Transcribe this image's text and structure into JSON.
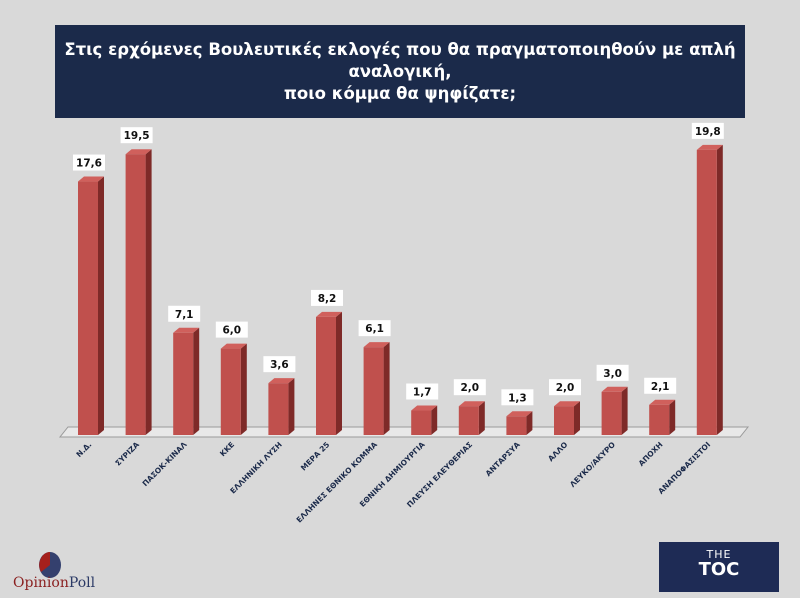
{
  "chart_data": {
    "type": "bar",
    "title": "Στις ερχόμενες Βουλευτικές εκλογές που θα πραγματοποιηθούν με απλή αναλογική, ποιο κόμμα θα ψηφίζατε;",
    "title_lines": [
      "Στις ερχόμενες Βουλευτικές εκλογές που θα πραγματοποιηθούν με απλή αναλογική,",
      "ποιο κόμμα θα ψηφίζατε;"
    ],
    "categories": [
      "Ν.Δ.",
      "ΣΥΡΙΖΑ",
      "ΠΑΣΟΚ-ΚΙΝΑΛ",
      "ΚΚΕ",
      "ΕΛΛΗΝΙΚΗ ΛΥΣΗ",
      "ΜΕΡΑ 25",
      "ΕΛΛΗΝΕΣ ΕΘΝΙΚΟ ΚΟΜΜΑ",
      "ΕΘΝΙΚΗ ΔΗΜΙΟΥΡΓΙΑ",
      "ΠΛΕΥΣΗ ΕΛΕΥΘΕΡΙΑΣ",
      "ΑΝΤΑΡΣΥΑ",
      "ΑΛΛΟ",
      "ΛΕΥΚΟ/ΑΚΥΡΟ",
      "ΑΠΟΧΗ",
      "ΑΝΑΠΟΦΑΣΙΣΤΟΙ"
    ],
    "values": [
      17.6,
      19.5,
      7.1,
      6.0,
      3.6,
      8.2,
      6.1,
      1.7,
      2.0,
      1.3,
      2.0,
      3.0,
      2.1,
      19.8
    ],
    "data_labels": [
      "17,6",
      "19,5",
      "7,1",
      "6,0",
      "3,6",
      "8,2",
      "6,1",
      "1,7",
      "2,0",
      "1,3",
      "2,0",
      "3,0",
      "2,1",
      "19,8"
    ],
    "xlabel": "",
    "ylabel": "",
    "ylim": [
      0,
      20
    ],
    "grid": false,
    "style": "3d-bar",
    "bar_color": "#c0504d"
  },
  "logos": {
    "left": {
      "text_a": "Opinion",
      "text_b": "Poll"
    },
    "right": {
      "line1": "THE",
      "line2": "TOC"
    }
  }
}
